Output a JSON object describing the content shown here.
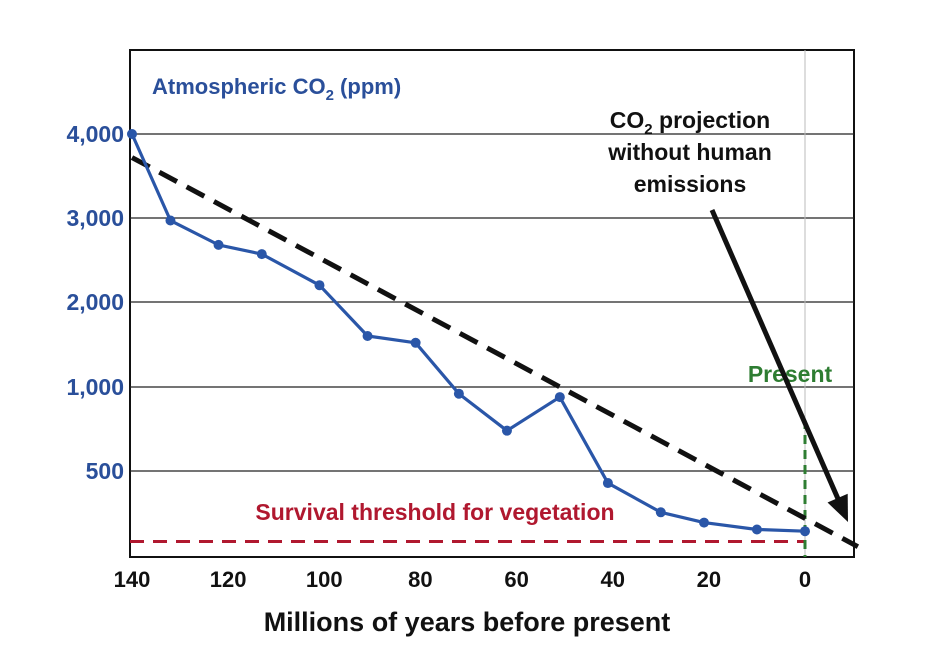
{
  "chart_data": {
    "type": "line",
    "title_prefix": "Atmospheric CO",
    "title_sub": "2",
    "title_suffix": " (ppm)",
    "xlabel": "Millions of years before present",
    "x_ticks": [
      "140",
      "120",
      "100",
      "80",
      "60",
      "40",
      "20",
      "0"
    ],
    "y_ticks": [
      "4,000",
      "3,000",
      "2,000",
      "1,000",
      "500"
    ],
    "series": [
      {
        "color": "#2a56a8",
        "points": [
          {
            "x": 140,
            "y": 4000
          },
          {
            "x": 132,
            "y": 2970
          },
          {
            "x": 122,
            "y": 2680
          },
          {
            "x": 113,
            "y": 2570
          },
          {
            "x": 101,
            "y": 2200
          },
          {
            "x": 91,
            "y": 1600
          },
          {
            "x": 81,
            "y": 1520
          },
          {
            "x": 72,
            "y": 960
          },
          {
            "x": 62,
            "y": 740
          },
          {
            "x": 51,
            "y": 940
          },
          {
            "x": 41,
            "y": 430
          },
          {
            "x": 30,
            "y": 260
          },
          {
            "x": 21,
            "y": 200
          },
          {
            "x": 10,
            "y": 160
          },
          {
            "x": 0,
            "y": 150
          }
        ]
      }
    ],
    "projection": {
      "color": "#111111",
      "style": "dashed",
      "from": {
        "x": 140,
        "y": 3720
      },
      "to": {
        "x": -11,
        "y": 60
      }
    },
    "threshold": {
      "label": "Survival threshold for vegetation",
      "value": 90,
      "color": "#b0182f"
    },
    "present_marker": {
      "label": "Present",
      "x": 0,
      "color": "#2e7d32"
    },
    "annotation": {
      "lines": [
        "CO",
        " projection",
        "without human",
        "emissions"
      ],
      "line1_prefix": "CO",
      "line1_sub": "2",
      "line1_suffix": " projection",
      "line2": "without human",
      "line3": "emissions"
    },
    "grid": true
  }
}
